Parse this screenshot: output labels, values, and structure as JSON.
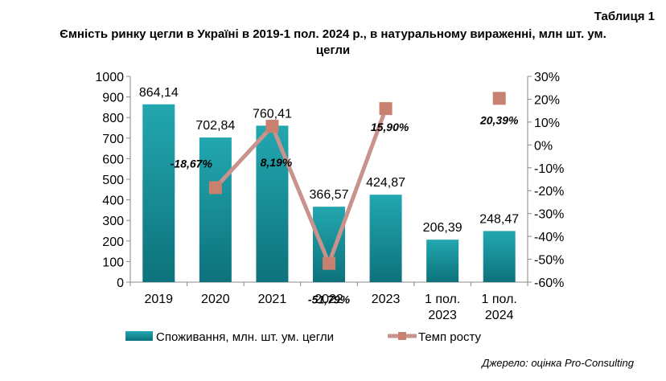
{
  "table_label": "Таблиця 1",
  "title_line1": "Ємність ринку цегли в Україні в 2019-1 пол. 2024 р., в натуральному вираженні, млн шт. ум.",
  "title_line2": "цегли",
  "source": "Джерело: оцінка Pro-Consulting",
  "colors": {
    "bar": "#1a9aa3",
    "bar_dark": "#0b6a73",
    "line": "#c8938d",
    "marker": "#c9816f"
  },
  "chart_data": {
    "type": "bar",
    "categories": [
      [
        "2019"
      ],
      [
        "2020"
      ],
      [
        "2021"
      ],
      [
        "2022"
      ],
      [
        "2023"
      ],
      [
        "1 пол.",
        "2023"
      ],
      [
        "1 пол.",
        "2024"
      ]
    ],
    "series": [
      {
        "name": "Споживання, млн. шт. ум. цегли",
        "type": "bar",
        "axis": "left",
        "values": [
          864.14,
          702.84,
          760.41,
          366.57,
          424.87,
          206.39,
          248.47
        ],
        "labels": [
          "864,14",
          "702,84",
          "760,41",
          "366,57",
          "424,87",
          "206,39",
          "248,47"
        ]
      },
      {
        "name": "Темп росту",
        "type": "line",
        "axis": "right",
        "values": [
          null,
          -18.67,
          8.19,
          -51.79,
          15.9,
          null,
          20.39
        ],
        "labels": [
          "",
          "-18,67%",
          "8,19%",
          "-51,79%",
          "15,90%",
          "",
          "20,39%"
        ],
        "connected": [
          1,
          2,
          3,
          4
        ]
      }
    ],
    "y_left": {
      "min": 0,
      "max": 1000,
      "step": 100,
      "ticks": [
        "0",
        "100",
        "200",
        "300",
        "400",
        "500",
        "600",
        "700",
        "800",
        "900",
        "1000"
      ]
    },
    "y_right": {
      "min": -60,
      "max": 30,
      "step": 10,
      "ticks": [
        "-60%",
        "-50%",
        "-40%",
        "-30%",
        "-20%",
        "-10%",
        "0%",
        "10%",
        "20%",
        "30%"
      ]
    },
    "legend_position": "bottom",
    "grid": false
  }
}
